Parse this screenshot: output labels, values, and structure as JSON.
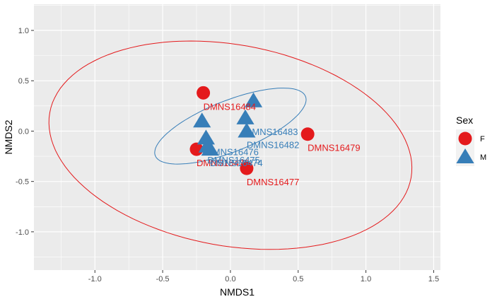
{
  "chart_data": {
    "type": "scatter",
    "xlabel": "NMDS1",
    "ylabel": "NMDS2",
    "xlim": [
      -1.45,
      1.55
    ],
    "ylim": [
      -1.38,
      1.26
    ],
    "xticks": [
      -1.0,
      -0.5,
      0.0,
      0.5,
      1.0,
      1.5
    ],
    "xtick_labels": [
      "-1.0",
      "-0.5",
      "0.0",
      "0.5",
      "1.0",
      "1.5"
    ],
    "yticks": [
      -1.0,
      -0.5,
      0.0,
      0.5,
      1.0
    ],
    "ytick_labels": [
      "-1.0",
      "-0.5",
      "0.0",
      "0.5",
      "1.0"
    ],
    "grid": true,
    "legend": {
      "title": "Sex",
      "position": "right",
      "entries": [
        {
          "label": "F",
          "shape": "circle",
          "color": "#E41A1C"
        },
        {
          "label": "M",
          "shape": "triangle",
          "color": "#377EB8"
        }
      ]
    },
    "colors": {
      "F": "#E41A1C",
      "M": "#377EB8",
      "panel": "#EBEBEB",
      "grid": "#FFFFFF"
    },
    "points": [
      {
        "x": -0.2,
        "y": 0.38,
        "group": "F",
        "label": "DMNS16484"
      },
      {
        "x": -0.25,
        "y": -0.18,
        "group": "F",
        "label": "DMNS16478"
      },
      {
        "x": 0.12,
        "y": -0.37,
        "group": "F",
        "label": "DMNS16477"
      },
      {
        "x": 0.57,
        "y": -0.03,
        "group": "F",
        "label": "DMNS16479"
      },
      {
        "x": 0.17,
        "y": 0.3,
        "group": "M",
        "label": ""
      },
      {
        "x": 0.11,
        "y": 0.13,
        "group": "M",
        "label": "DMNS16483"
      },
      {
        "x": -0.21,
        "y": 0.1,
        "group": "M",
        "label": ""
      },
      {
        "x": -0.18,
        "y": -0.07,
        "group": "M",
        "label": "DMNS16476"
      },
      {
        "x": -0.15,
        "y": -0.18,
        "group": "M",
        "label": "DMNS16474"
      },
      {
        "x": -0.17,
        "y": -0.15,
        "group": "M",
        "label": "DMNS16475"
      },
      {
        "x": 0.12,
        "y": 0.0,
        "group": "M",
        "label": "DMNS16482"
      }
    ],
    "ellipses": [
      {
        "group": "F",
        "center": [
          0.0,
          -0.14
        ],
        "semi_axes": [
          1.38,
          0.98
        ],
        "angle_deg": -20
      },
      {
        "group": "M",
        "center": [
          0.0,
          0.05
        ],
        "semi_axes": [
          0.63,
          0.24
        ],
        "angle_deg": 30
      }
    ]
  }
}
